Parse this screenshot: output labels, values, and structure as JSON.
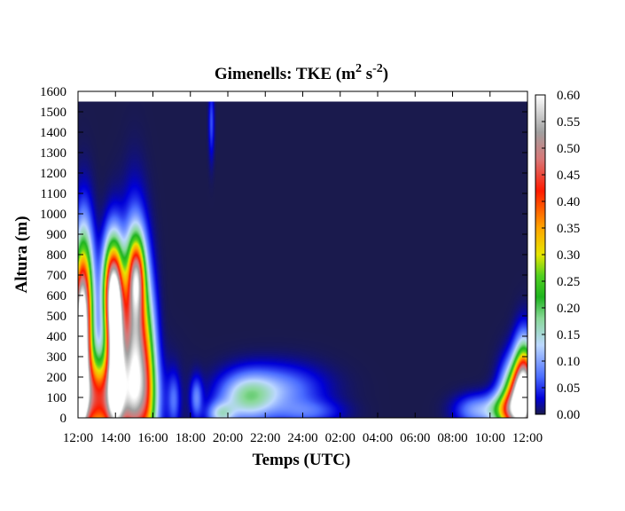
{
  "chart_data": {
    "type": "heatmap",
    "title": {
      "main": "Gimenells: TKE (m",
      "sup1": "2",
      "mid": " s",
      "sup2": "-2",
      "end": ")"
    },
    "xlabel": "Temps (UTC)",
    "ylabel": "Altura (m)",
    "x_ticks": [
      "12:00",
      "14:00",
      "16:00",
      "18:00",
      "20:00",
      "22:00",
      "24:00",
      "02:00",
      "04:00",
      "06:00",
      "08:00",
      "10:00",
      "12:00"
    ],
    "x_range_hours": [
      0,
      24
    ],
    "ylim": [
      0,
      1600
    ],
    "y_ticks": [
      0,
      100,
      200,
      300,
      400,
      500,
      600,
      700,
      800,
      900,
      1000,
      1100,
      1200,
      1300,
      1400,
      1500,
      1600
    ],
    "data_top_m": 1550,
    "colorbar": {
      "min": 0.0,
      "max": 0.6,
      "ticks": [
        "0.00",
        "0.05",
        "0.10",
        "0.15",
        "0.20",
        "0.25",
        "0.30",
        "0.35",
        "0.40",
        "0.45",
        "0.50",
        "0.55",
        "0.60"
      ],
      "stops": [
        {
          "v": 0.0,
          "color": "#1a1a4d"
        },
        {
          "v": 0.03,
          "color": "#0000d8"
        },
        {
          "v": 0.07,
          "color": "#4a6cff"
        },
        {
          "v": 0.13,
          "color": "#bcd8ff"
        },
        {
          "v": 0.18,
          "color": "#88d898"
        },
        {
          "v": 0.22,
          "color": "#1eb41e"
        },
        {
          "v": 0.26,
          "color": "#50d020"
        },
        {
          "v": 0.3,
          "color": "#e6e600"
        },
        {
          "v": 0.35,
          "color": "#ffa500"
        },
        {
          "v": 0.42,
          "color": "#ff1a00"
        },
        {
          "v": 0.48,
          "color": "#d87878"
        },
        {
          "v": 0.53,
          "color": "#a0a0a0"
        },
        {
          "v": 0.6,
          "color": "#ffffff"
        }
      ]
    },
    "features": [
      {
        "t_h": 0.3,
        "z_m": 520,
        "st_h": 0.35,
        "sz_m": 260,
        "tke": 0.48
      },
      {
        "t_h": 0.1,
        "z_m": 250,
        "st_h": 0.25,
        "sz_m": 250,
        "tke": 0.52
      },
      {
        "t_h": 2.0,
        "z_m": 330,
        "st_h": 0.32,
        "sz_m": 260,
        "tke": 0.6
      },
      {
        "t_h": 1.8,
        "z_m": 620,
        "st_h": 0.35,
        "sz_m": 170,
        "tke": 0.45
      },
      {
        "t_h": 3.0,
        "z_m": 350,
        "st_h": 0.45,
        "sz_m": 330,
        "tke": 0.5
      },
      {
        "t_h": 3.1,
        "z_m": 700,
        "st_h": 0.3,
        "sz_m": 130,
        "tke": 0.3
      },
      {
        "t_h": 1.0,
        "z_m": 90,
        "st_h": 1.6,
        "sz_m": 150,
        "tke": 0.42
      },
      {
        "t_h": 3.7,
        "z_m": 180,
        "st_h": 0.35,
        "sz_m": 280,
        "tke": 0.22
      },
      {
        "t_h": 5.1,
        "z_m": 90,
        "st_h": 0.22,
        "sz_m": 90,
        "tke": 0.06
      },
      {
        "t_h": 6.3,
        "z_m": 100,
        "st_h": 0.22,
        "sz_m": 70,
        "tke": 0.08
      },
      {
        "t_h": 7.6,
        "z_m": 20,
        "st_h": 0.5,
        "sz_m": 40,
        "tke": 0.12
      },
      {
        "t_h": 9.0,
        "z_m": 100,
        "st_h": 1.0,
        "sz_m": 80,
        "tke": 0.14
      },
      {
        "t_h": 10.7,
        "z_m": 140,
        "st_h": 1.6,
        "sz_m": 80,
        "tke": 0.09
      },
      {
        "t_h": 12.3,
        "z_m": 30,
        "st_h": 1.2,
        "sz_m": 40,
        "tke": 0.06
      },
      {
        "t_h": 7.1,
        "z_m": 1450,
        "st_h": 0.1,
        "sz_m": 120,
        "tke": 0.06
      },
      {
        "t_h": 21.3,
        "z_m": 40,
        "st_h": 0.8,
        "sz_m": 50,
        "tke": 0.1
      },
      {
        "t_h": 23.5,
        "z_m": 80,
        "st_h": 0.55,
        "sz_m": 120,
        "tke": 0.5
      },
      {
        "t_h": 23.8,
        "z_m": 170,
        "st_h": 0.35,
        "sz_m": 140,
        "tke": 0.4
      },
      {
        "t_h": 22.8,
        "z_m": 40,
        "st_h": 0.6,
        "sz_m": 60,
        "tke": 0.2
      }
    ]
  }
}
